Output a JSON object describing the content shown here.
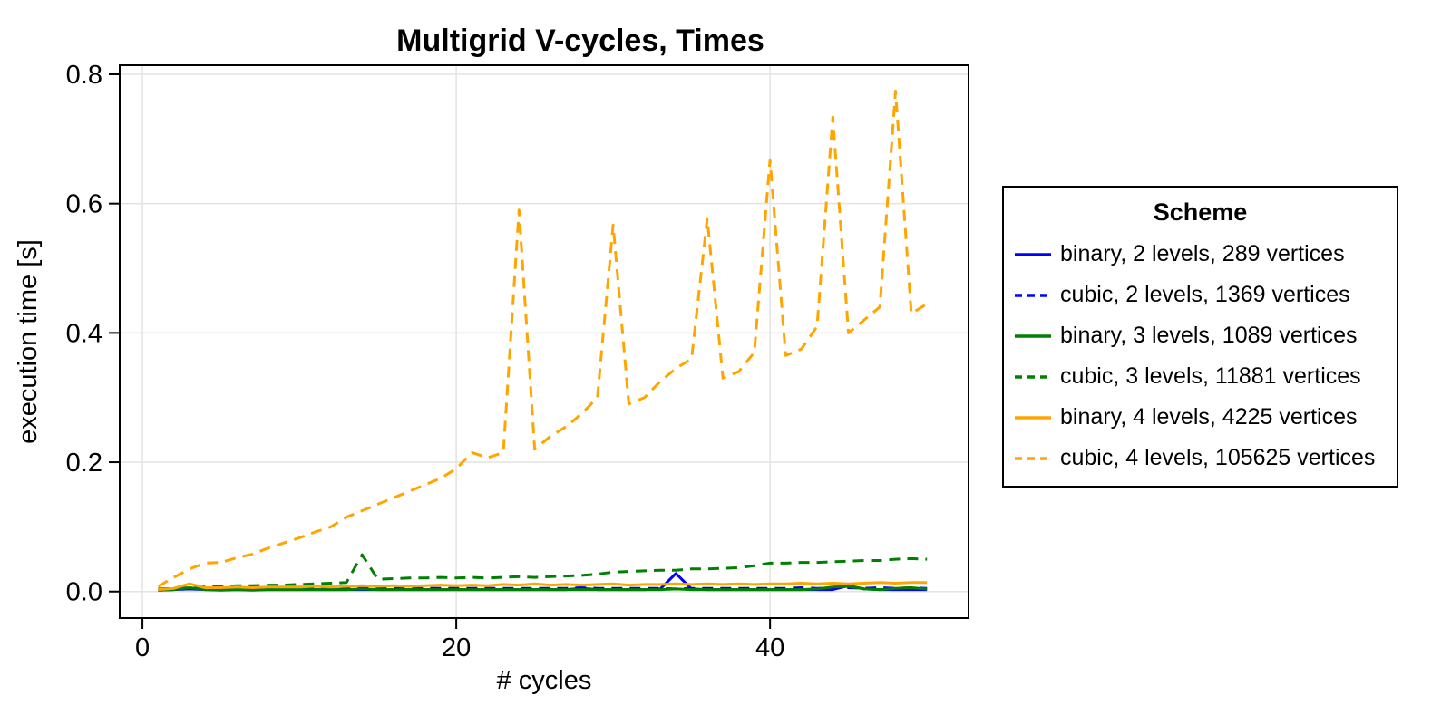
{
  "chart_data": {
    "type": "line",
    "title": "Multigrid V-cycles, Times",
    "xlabel": "# cycles",
    "ylabel": "execution time [s]",
    "legend_title": "Scheme",
    "legend_position": "right",
    "grid": true,
    "xlim": [
      -1.45,
      52.65
    ],
    "ylim": [
      -0.041,
      0.814
    ],
    "x_ticks": [
      0,
      20,
      40
    ],
    "y_ticks": [
      0,
      0.2,
      0.4,
      0.6,
      0.8
    ],
    "x": [
      1,
      2,
      3,
      4,
      5,
      6,
      7,
      8,
      9,
      10,
      11,
      12,
      13,
      14,
      15,
      16,
      17,
      18,
      19,
      20,
      21,
      22,
      23,
      24,
      25,
      26,
      27,
      28,
      29,
      30,
      31,
      32,
      33,
      34,
      35,
      36,
      37,
      38,
      39,
      40,
      41,
      42,
      43,
      44,
      45,
      46,
      47,
      48,
      49,
      50
    ],
    "series": [
      {
        "name": "binary, 2 levels, 289 vertices",
        "color": "#0000ff",
        "dash": false,
        "values": [
          0.002,
          0.003,
          0.004,
          0.003,
          0.003,
          0.003,
          0.003,
          0.003,
          0.003,
          0.003,
          0.003,
          0.003,
          0.003,
          0.003,
          0.003,
          0.003,
          0.003,
          0.003,
          0.003,
          0.003,
          0.003,
          0.003,
          0.003,
          0.003,
          0.003,
          0.003,
          0.003,
          0.005,
          0.003,
          0.003,
          0.003,
          0.003,
          0.004,
          0.028,
          0.004,
          0.003,
          0.003,
          0.003,
          0.003,
          0.003,
          0.003,
          0.003,
          0.003,
          0.003,
          0.009,
          0.004,
          0.003,
          0.003,
          0.003,
          0.003
        ]
      },
      {
        "name": "cubic, 2 levels, 1369 vertices",
        "color": "#0000ff",
        "dash": true,
        "values": [
          0.003,
          0.004,
          0.005,
          0.005,
          0.005,
          0.005,
          0.005,
          0.005,
          0.005,
          0.005,
          0.005,
          0.005,
          0.005,
          0.006,
          0.005,
          0.005,
          0.005,
          0.005,
          0.005,
          0.005,
          0.005,
          0.005,
          0.005,
          0.005,
          0.005,
          0.005,
          0.005,
          0.006,
          0.005,
          0.005,
          0.005,
          0.005,
          0.005,
          0.004,
          0.005,
          0.005,
          0.005,
          0.005,
          0.005,
          0.005,
          0.005,
          0.006,
          0.005,
          0.006,
          0.006,
          0.005,
          0.006,
          0.005,
          0.006,
          0.005
        ]
      },
      {
        "name": "binary, 3 levels, 1089 vertices",
        "color": "#008000",
        "dash": false,
        "values": [
          0.002,
          0.003,
          0.006,
          0.003,
          0.002,
          0.003,
          0.002,
          0.003,
          0.003,
          0.003,
          0.003,
          0.003,
          0.003,
          0.004,
          0.003,
          0.003,
          0.003,
          0.003,
          0.003,
          0.003,
          0.003,
          0.003,
          0.003,
          0.003,
          0.003,
          0.003,
          0.003,
          0.003,
          0.003,
          0.003,
          0.003,
          0.003,
          0.003,
          0.004,
          0.003,
          0.003,
          0.003,
          0.003,
          0.003,
          0.003,
          0.003,
          0.003,
          0.004,
          0.007,
          0.008,
          0.004,
          0.003,
          0.005,
          0.006,
          0.004
        ]
      },
      {
        "name": "cubic, 3 levels, 11881 vertices",
        "color": "#008000",
        "dash": true,
        "values": [
          0.004,
          0.005,
          0.006,
          0.008,
          0.008,
          0.009,
          0.009,
          0.01,
          0.01,
          0.011,
          0.012,
          0.013,
          0.014,
          0.057,
          0.019,
          0.02,
          0.021,
          0.021,
          0.022,
          0.021,
          0.022,
          0.021,
          0.022,
          0.023,
          0.022,
          0.023,
          0.024,
          0.025,
          0.027,
          0.03,
          0.031,
          0.032,
          0.033,
          0.033,
          0.035,
          0.035,
          0.036,
          0.037,
          0.04,
          0.044,
          0.044,
          0.045,
          0.045,
          0.046,
          0.047,
          0.048,
          0.048,
          0.05,
          0.051,
          0.05
        ]
      },
      {
        "name": "binary, 4 levels, 4225 vertices",
        "color": "#ffa500",
        "dash": false,
        "values": [
          0.003,
          0.005,
          0.012,
          0.006,
          0.006,
          0.007,
          0.006,
          0.007,
          0.007,
          0.007,
          0.008,
          0.007,
          0.008,
          0.009,
          0.008,
          0.009,
          0.008,
          0.009,
          0.01,
          0.009,
          0.01,
          0.009,
          0.011,
          0.01,
          0.012,
          0.01,
          0.011,
          0.01,
          0.011,
          0.012,
          0.01,
          0.011,
          0.011,
          0.012,
          0.011,
          0.012,
          0.011,
          0.012,
          0.011,
          0.012,
          0.012,
          0.013,
          0.012,
          0.013,
          0.012,
          0.013,
          0.014,
          0.013,
          0.014,
          0.014
        ]
      },
      {
        "name": "cubic, 4 levels, 105625 vertices",
        "color": "#ffa500",
        "dash": true,
        "values": [
          0.008,
          0.022,
          0.035,
          0.044,
          0.045,
          0.052,
          0.058,
          0.067,
          0.075,
          0.083,
          0.092,
          0.1,
          0.115,
          0.125,
          0.135,
          0.145,
          0.155,
          0.165,
          0.175,
          0.19,
          0.215,
          0.207,
          0.215,
          0.59,
          0.22,
          0.24,
          0.255,
          0.275,
          0.3,
          0.567,
          0.29,
          0.3,
          0.325,
          0.345,
          0.36,
          0.577,
          0.33,
          0.34,
          0.37,
          0.668,
          0.365,
          0.375,
          0.41,
          0.734,
          0.4,
          0.42,
          0.44,
          0.774,
          0.43,
          0.445
        ]
      }
    ]
  }
}
